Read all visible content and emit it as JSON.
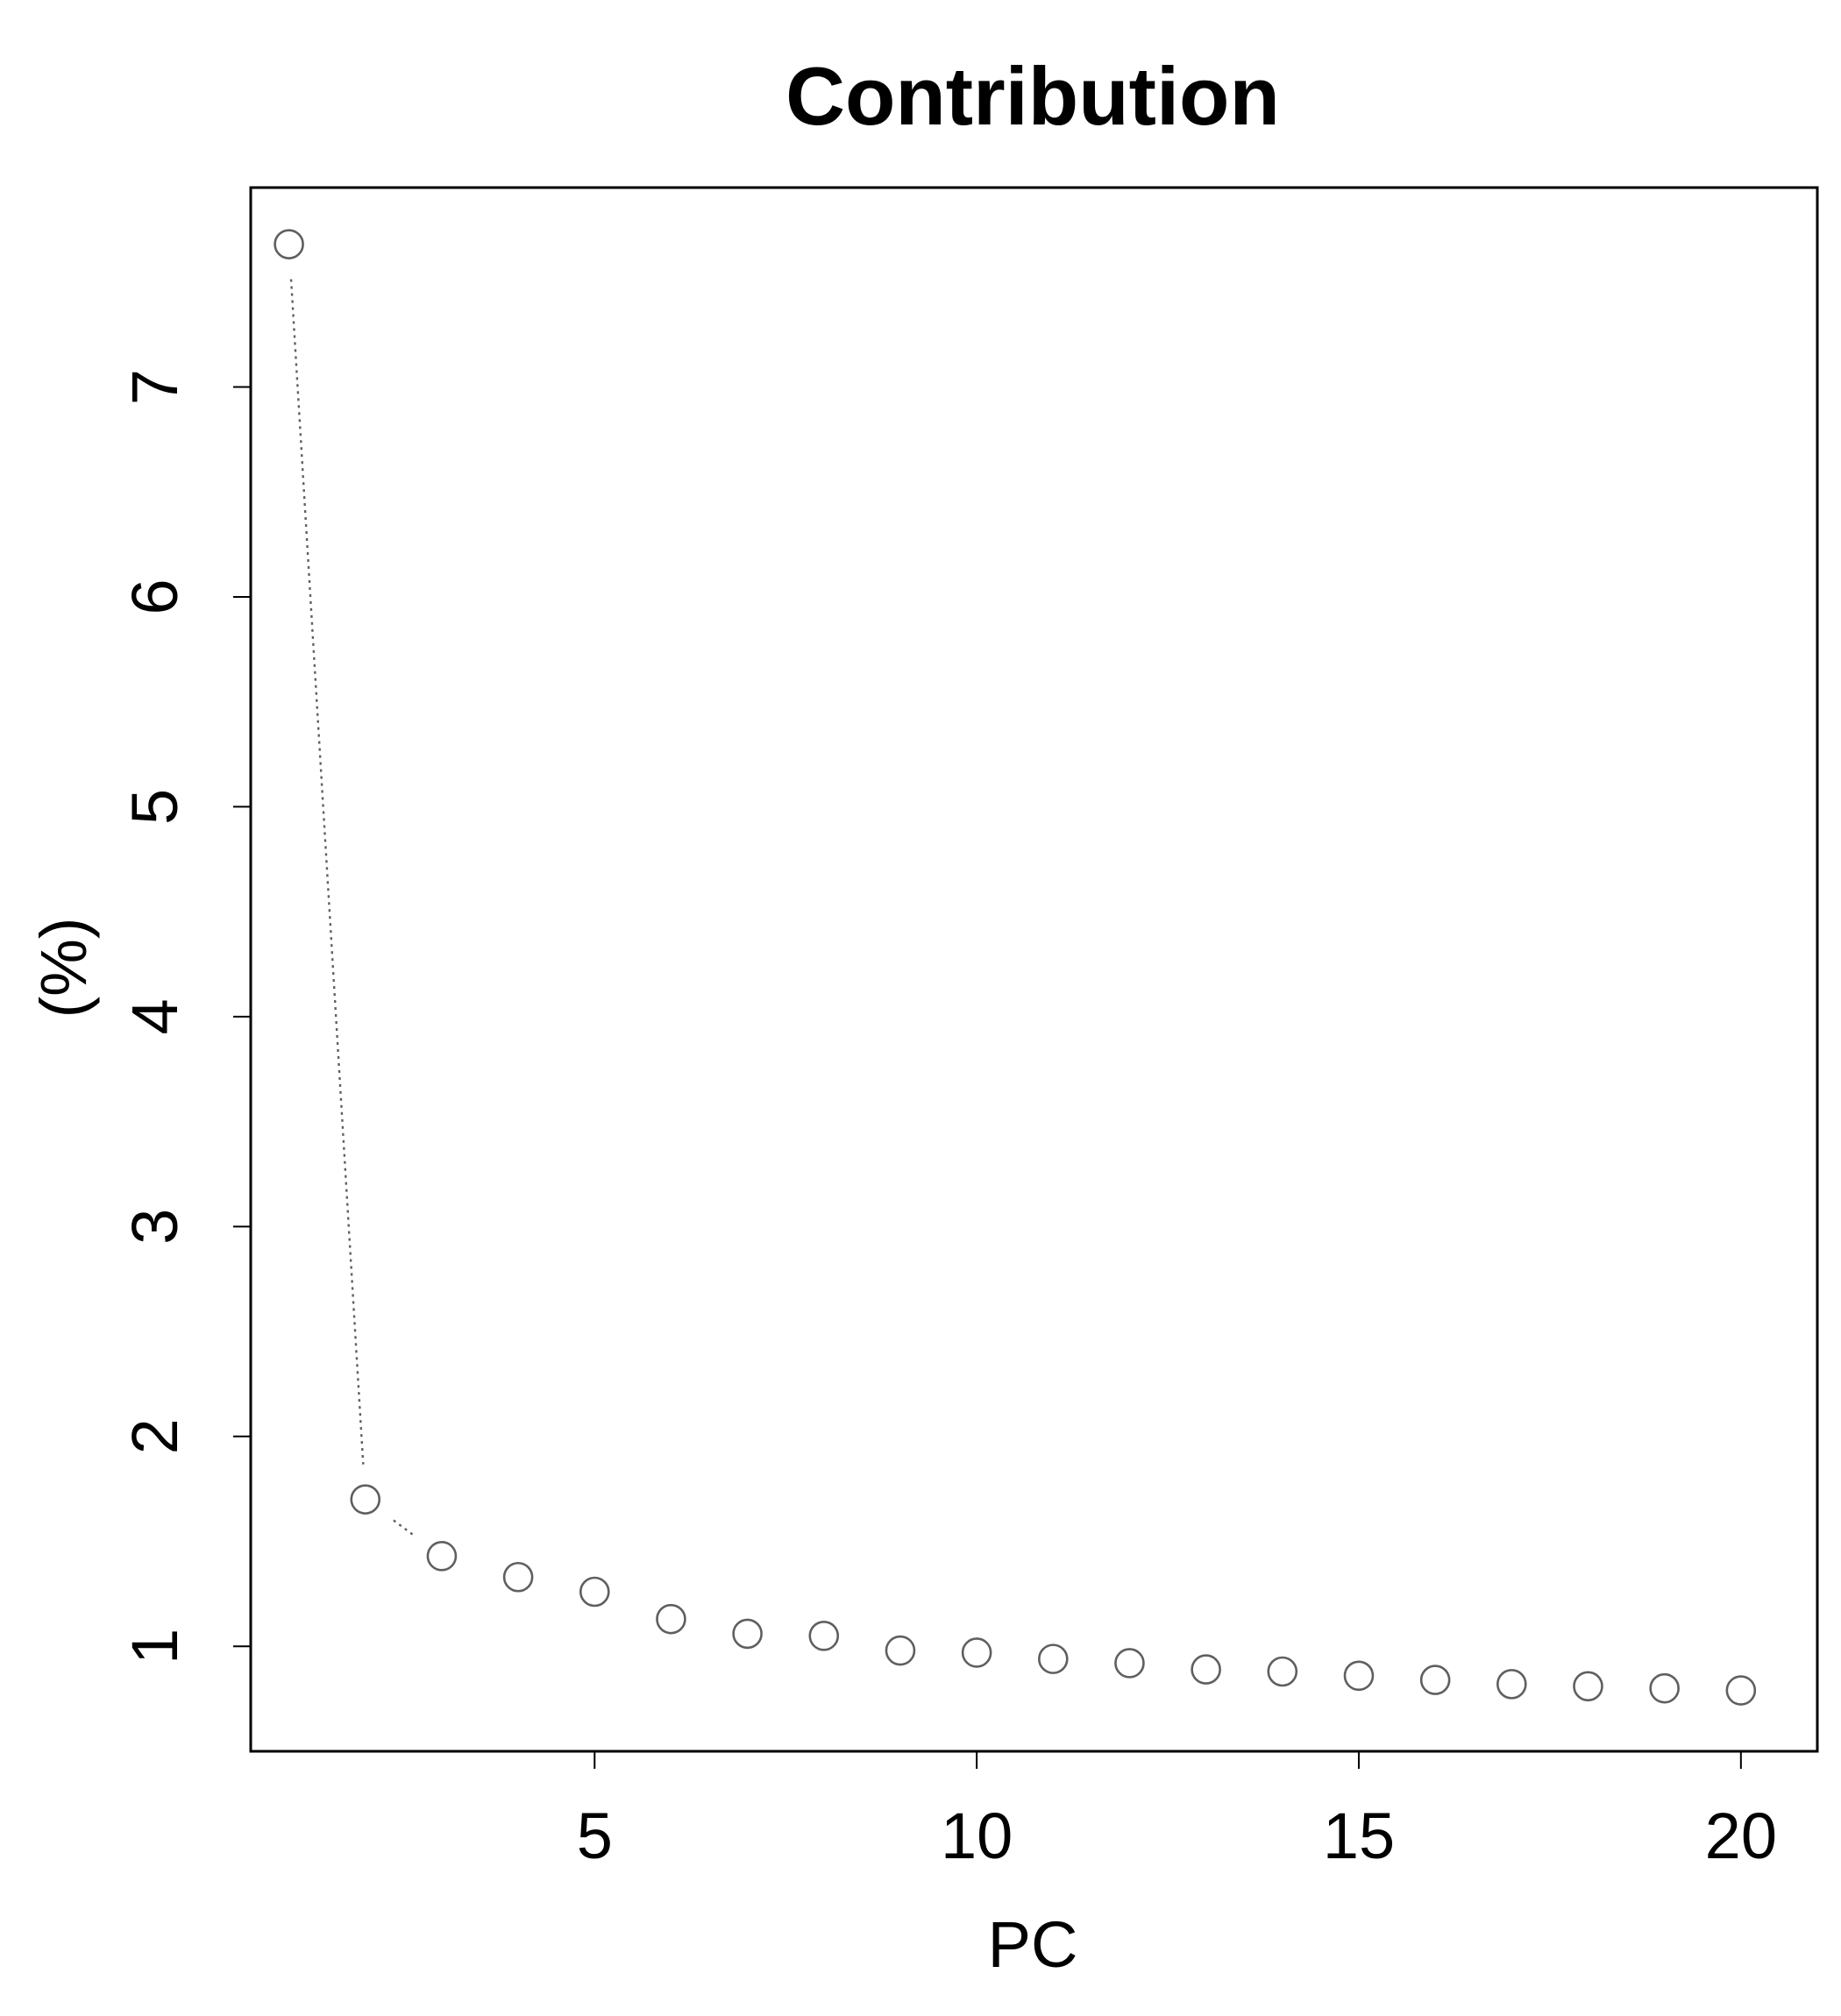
{
  "chart_data": {
    "type": "scatter",
    "title": "Contribution",
    "xlabel": "PC",
    "ylabel": "(%)",
    "xlim": [
      0.5,
      21
    ],
    "ylim": [
      0.5,
      7.95
    ],
    "xticks": [
      5,
      10,
      15,
      20
    ],
    "yticks": [
      1,
      2,
      3,
      4,
      5,
      6,
      7
    ],
    "grid": false,
    "marker": "open-circle",
    "marker_color": "#5f5f5f",
    "series": [
      {
        "x": [
          1,
          2,
          3,
          4,
          5,
          6,
          7,
          8,
          9,
          10,
          11,
          12,
          13,
          14,
          15,
          16,
          17,
          18,
          19,
          20
        ],
        "values": [
          7.68,
          1.7,
          1.43,
          1.33,
          1.26,
          1.13,
          1.06,
          1.05,
          0.98,
          0.97,
          0.94,
          0.92,
          0.89,
          0.88,
          0.86,
          0.84,
          0.82,
          0.81,
          0.8,
          0.79
        ]
      }
    ],
    "connectors": [
      {
        "from": 1,
        "to": 2
      },
      {
        "from": 2,
        "to": 3
      }
    ]
  }
}
